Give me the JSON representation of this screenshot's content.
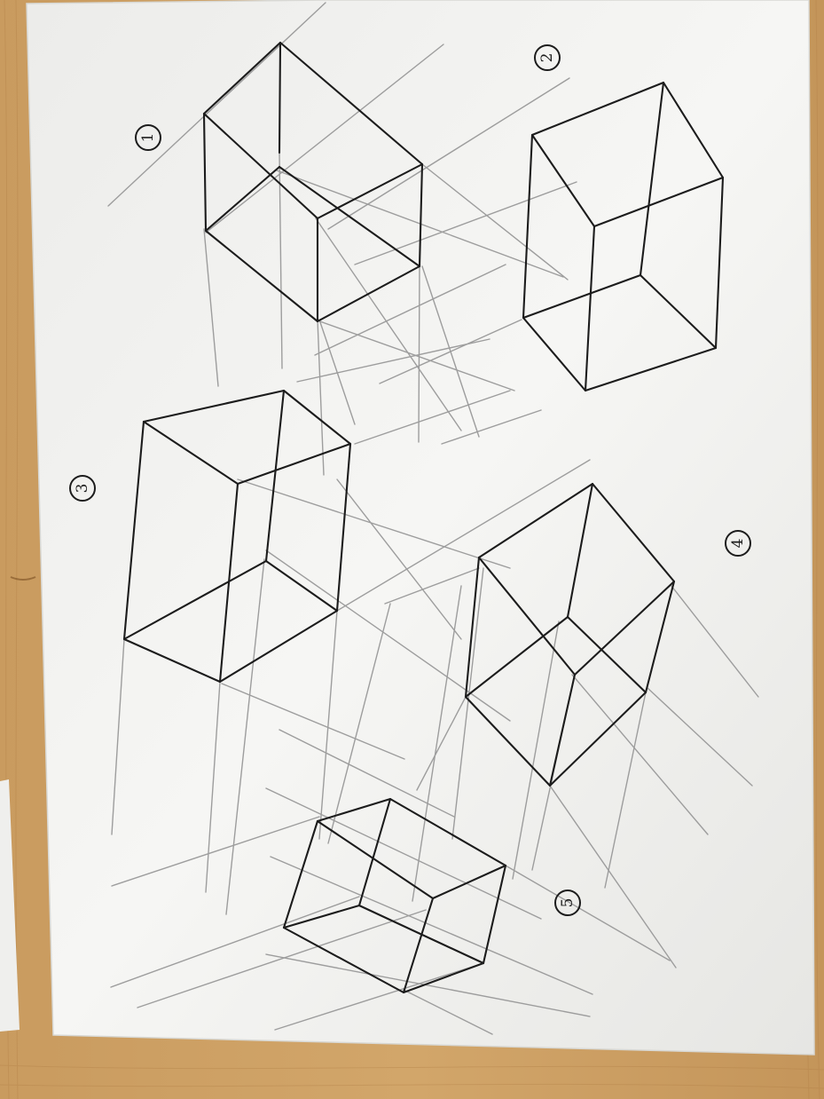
{
  "colors": {
    "table": "#c99b5f",
    "table_dark": "#b5844a",
    "paper": "#f4f4f2",
    "paper_shadow": "#dcdcd8",
    "pencil": "#9d9d9d",
    "ink": "#1c1c1c"
  },
  "labels": [
    {
      "id": "1",
      "text": "1"
    },
    {
      "id": "2",
      "text": "2"
    },
    {
      "id": "3",
      "text": "3"
    },
    {
      "id": "4",
      "text": "4"
    },
    {
      "id": "5",
      "text": "5"
    }
  ]
}
